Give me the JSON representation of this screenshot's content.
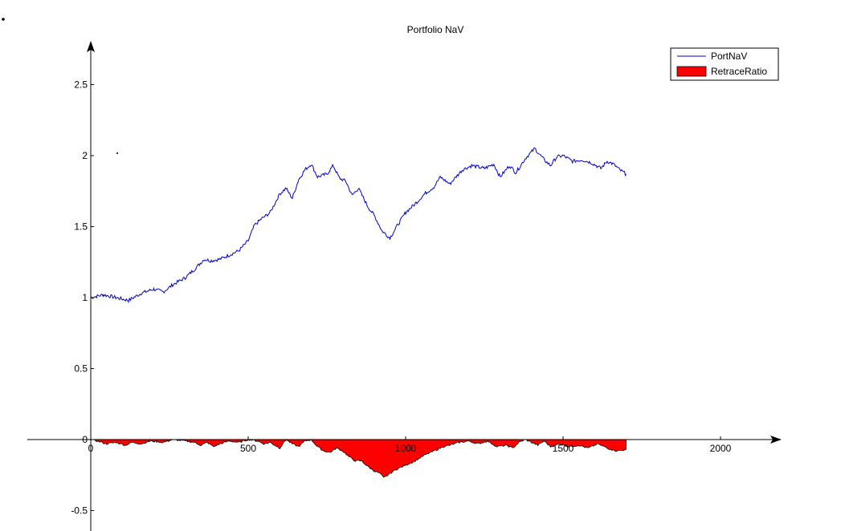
{
  "chart_data": {
    "type": "line",
    "title": "Portfolio NaV",
    "xlabel": "",
    "ylabel": "",
    "xlim": [
      -200,
      2150
    ],
    "ylim": [
      -0.65,
      2.75
    ],
    "x_ticks": [
      0,
      500,
      1000,
      1500,
      2000
    ],
    "y_ticks": [
      -0.5,
      0,
      0.5,
      1,
      1.5,
      2,
      2.5
    ],
    "x_tick_labels": [
      "0",
      "500",
      "1000",
      "1500",
      "2000"
    ],
    "y_tick_labels": [
      "-0.5",
      "0",
      "0.5",
      "1",
      "1.5",
      "2",
      "2.5"
    ],
    "grid": false,
    "legend_position": "top-right",
    "series": [
      {
        "name": "PortNaV",
        "kind": "line",
        "color": "#0000cc",
        "x": [
          0,
          40,
          80,
          120,
          160,
          200,
          230,
          260,
          300,
          330,
          360,
          380,
          410,
          440,
          470,
          500,
          520,
          540,
          570,
          600,
          620,
          640,
          660,
          680,
          700,
          720,
          750,
          770,
          790,
          810,
          830,
          850,
          880,
          900,
          925,
          950,
          980,
          1000,
          1030,
          1060,
          1090,
          1110,
          1140,
          1180,
          1210,
          1250,
          1280,
          1300,
          1330,
          1350,
          1380,
          1410,
          1440,
          1460,
          1480,
          1500,
          1530,
          1560,
          1590,
          1620,
          1640,
          1660,
          1680,
          1700
        ],
        "y": [
          1.0,
          1.02,
          1.0,
          0.98,
          1.03,
          1.06,
          1.04,
          1.09,
          1.14,
          1.2,
          1.27,
          1.26,
          1.27,
          1.3,
          1.33,
          1.4,
          1.51,
          1.55,
          1.6,
          1.73,
          1.77,
          1.7,
          1.83,
          1.9,
          1.94,
          1.85,
          1.87,
          1.93,
          1.84,
          1.82,
          1.72,
          1.77,
          1.64,
          1.58,
          1.47,
          1.42,
          1.53,
          1.6,
          1.66,
          1.73,
          1.78,
          1.85,
          1.8,
          1.9,
          1.93,
          1.91,
          1.94,
          1.85,
          1.93,
          1.88,
          1.98,
          2.05,
          1.97,
          1.93,
          1.99,
          2.0,
          1.96,
          1.97,
          1.95,
          1.91,
          1.96,
          1.94,
          1.9,
          1.87
        ]
      },
      {
        "name": "RetraceRatio",
        "kind": "area",
        "color": "#ff0000",
        "x": [
          0,
          20,
          50,
          80,
          110,
          130,
          160,
          190,
          230,
          260,
          300,
          330,
          350,
          370,
          390,
          410,
          440,
          470,
          500,
          530,
          550,
          570,
          600,
          620,
          640,
          660,
          680,
          700,
          720,
          740,
          760,
          780,
          800,
          820,
          840,
          860,
          880,
          900,
          920,
          930,
          950,
          970,
          1000,
          1030,
          1060,
          1090,
          1120,
          1140,
          1170,
          1200,
          1230,
          1260,
          1290,
          1320,
          1340,
          1360,
          1380,
          1400,
          1420,
          1440,
          1460,
          1490,
          1520,
          1550,
          1580,
          1610,
          1640,
          1670,
          1700
        ],
        "y": [
          0,
          -0.01,
          -0.03,
          -0.02,
          -0.04,
          -0.02,
          -0.03,
          -0.01,
          -0.02,
          0,
          -0.01,
          -0.02,
          -0.04,
          -0.02,
          -0.05,
          -0.03,
          -0.01,
          -0.02,
          0,
          -0.01,
          -0.03,
          -0.02,
          -0.06,
          0,
          -0.03,
          -0.05,
          -0.01,
          0,
          -0.05,
          -0.08,
          -0.09,
          -0.06,
          -0.08,
          -0.12,
          -0.15,
          -0.15,
          -0.19,
          -0.22,
          -0.24,
          -0.27,
          -0.24,
          -0.21,
          -0.18,
          -0.15,
          -0.11,
          -0.08,
          -0.05,
          -0.04,
          -0.02,
          -0.01,
          -0.03,
          -0.01,
          -0.05,
          -0.04,
          -0.06,
          -0.02,
          0,
          -0.02,
          -0.04,
          -0.01,
          -0.05,
          -0.03,
          -0.05,
          -0.04,
          -0.06,
          -0.03,
          -0.06,
          -0.08,
          -0.07
        ]
      }
    ],
    "legend": [
      {
        "label": "PortNaV",
        "kind": "line",
        "color": "#0000cc"
      },
      {
        "label": "RetraceRatio",
        "kind": "patch",
        "color": "#ff0000"
      }
    ],
    "annotations": [
      {
        "text": "."
      },
      {
        "text": "."
      }
    ]
  }
}
